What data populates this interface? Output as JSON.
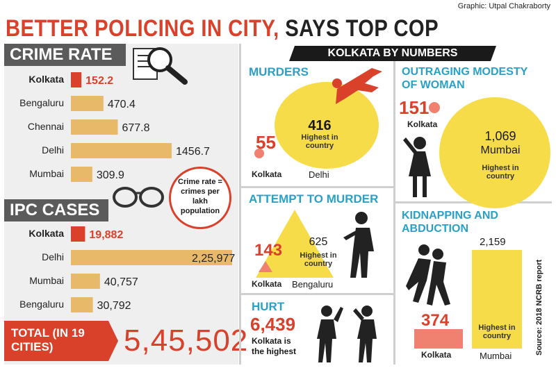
{
  "credit": "Graphic: Utpal Chakraborty",
  "headline": {
    "part1": "BETTER POLICING IN CITY,",
    "part2": " SAYS TOP COP"
  },
  "crime_rate": {
    "title": "CRIME RATE",
    "note": "Crime rate = crimes per lakh population",
    "rows": [
      {
        "city": "Kolkata",
        "value": 152.2,
        "label": "152.2",
        "highlight": true
      },
      {
        "city": "Bengaluru",
        "value": 470.4,
        "label": "470.4",
        "highlight": false
      },
      {
        "city": "Chennai",
        "value": 677.8,
        "label": "677.8",
        "highlight": false
      },
      {
        "city": "Delhi",
        "value": 1456.7,
        "label": "1456.7",
        "highlight": false
      },
      {
        "city": "Mumbai",
        "value": 309.9,
        "label": "309.9",
        "highlight": false
      }
    ]
  },
  "ipc_cases": {
    "title": "IPC CASES",
    "rows": [
      {
        "city": "Kolkata",
        "value": 19882,
        "label": "19,882",
        "highlight": true
      },
      {
        "city": "Delhi",
        "value": 225977,
        "label": "2,25,977",
        "highlight": false
      },
      {
        "city": "Mumbai",
        "value": 40757,
        "label": "40,757",
        "highlight": false
      },
      {
        "city": "Bengaluru",
        "value": 30792,
        "label": "30,792",
        "highlight": false
      }
    ],
    "total_label": "TOTAL (IN 19 CITIES)",
    "total_value": "5,45,502"
  },
  "numbers": {
    "title": "KOLKATA BY NUMBERS",
    "murders": {
      "title": "MURDERS",
      "kolkata": "55",
      "kolkata_label": "Kolkata",
      "top": "416",
      "top_label": "Delhi",
      "note": "Highest in country"
    },
    "modesty": {
      "title": "OUTRAGING MODESTY OF WOMAN",
      "kolkata": "151",
      "kolkata_label": "Kolkata",
      "top": "1,069",
      "top_city": "Mumbai",
      "note": "Highest in country"
    },
    "attempt": {
      "title": "ATTEMPT TO MURDER",
      "kolkata": "143",
      "kolkata_label": "Kolkata",
      "top": "625",
      "top_label": "Bengaluru",
      "note": "Highest in country"
    },
    "kidnapping": {
      "title": "KIDNAPPING AND ABDUCTION",
      "kolkata": "374",
      "kolkata_label": "Kolkata",
      "top": "2,159",
      "top_label": "Mumbai",
      "note": "Highest in country"
    },
    "hurt": {
      "title": "HURT",
      "value": "6,439",
      "note": "Kolkata is the highest"
    }
  },
  "source": "Source: 2018 NCRB report",
  "colors": {
    "red": "#d9412b",
    "bar": "#e9b96a",
    "yellow": "#f7dc4a",
    "blue": "#2aa0c6",
    "grey": "#5b5b5b"
  },
  "chart_data": [
    {
      "type": "bar",
      "title": "CRIME RATE",
      "categories": [
        "Kolkata",
        "Bengaluru",
        "Chennai",
        "Delhi",
        "Mumbai"
      ],
      "values": [
        152.2,
        470.4,
        677.8,
        1456.7,
        309.9
      ]
    },
    {
      "type": "bar",
      "title": "IPC CASES",
      "categories": [
        "Kolkata",
        "Delhi",
        "Mumbai",
        "Bengaluru"
      ],
      "values": [
        19882,
        225977,
        40757,
        30792
      ]
    }
  ]
}
